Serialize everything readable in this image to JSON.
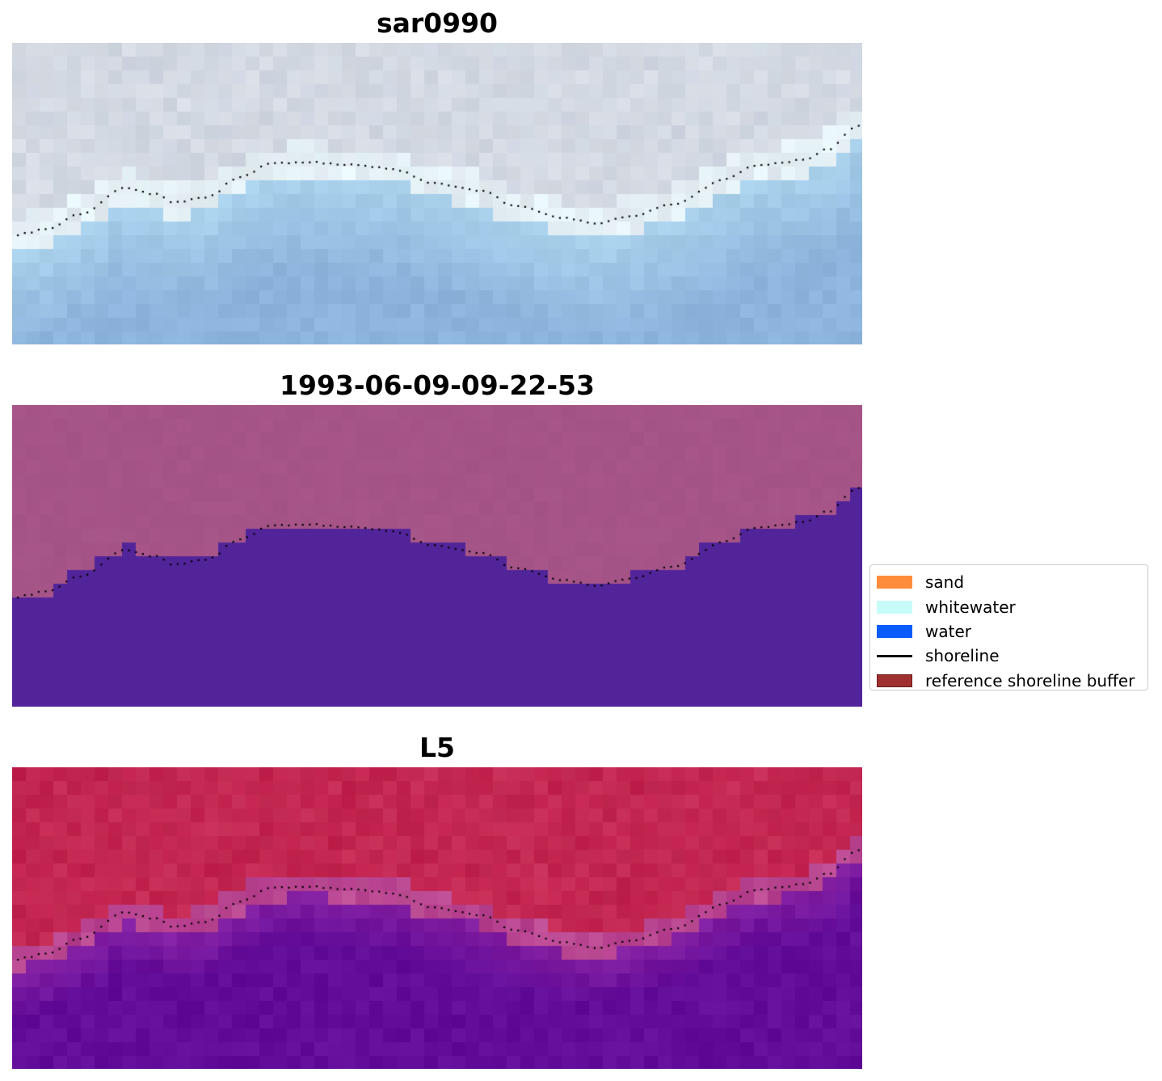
{
  "panels": [
    {
      "title": "sar0990",
      "palette": "rgb"
    },
    {
      "title": "1993-06-09-09-22-53",
      "palette": "classified"
    },
    {
      "title": "L5",
      "palette": "index"
    }
  ],
  "legend": {
    "items": [
      {
        "label": "sand",
        "kind": "patch",
        "color": "#ff8c3a"
      },
      {
        "label": "whitewater",
        "kind": "patch",
        "color": "#c6fbf8"
      },
      {
        "label": "water",
        "kind": "patch",
        "color": "#0a5cff"
      },
      {
        "label": "shoreline",
        "kind": "line",
        "color": "#000000"
      },
      {
        "label": "reference shoreline buffer",
        "kind": "patch",
        "color": "#a03030"
      }
    ]
  },
  "colors": {
    "rgb_land": "#d8dce4",
    "rgb_water": "#8cb4dc",
    "classified_land": "#a8568a",
    "classified_water": "#52249a",
    "index_land": "#c0204c",
    "index_water": "#620c9a",
    "shoreline_dots": "#000000"
  }
}
